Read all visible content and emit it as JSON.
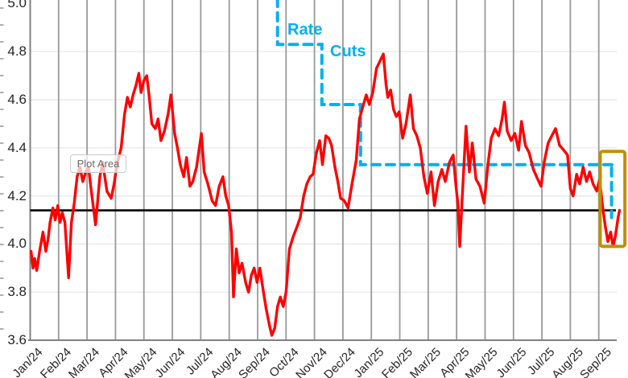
{
  "chart": {
    "plot_area_tooltip": "Plot Area",
    "annotations": {
      "rate_label": "Rate",
      "cuts_label": "Cuts"
    },
    "colors": {
      "red_line": "#FF0000",
      "rate_cuts_blue": "#00B0F0",
      "reference_black": "#000000",
      "highlight_gold": "#BF9000",
      "vertical_gridline": "#9A9A9A",
      "horizontal_gridline": "#E3E6EA",
      "axis_line": "#808080",
      "axis_text": "#262626"
    }
  },
  "chart_data": {
    "type": "line",
    "title": "",
    "grid": {
      "vertical": true,
      "horizontal": true
    },
    "legend": "none",
    "x_unit": "months since Jan 2024 (0 = Jan/24 gridline, 1 tick per month)",
    "x_tick_labels": [
      "Jan/24",
      "Feb/24",
      "Mar/24",
      "Apr/24",
      "May/24",
      "Jun/24",
      "Jul/24",
      "Aug/24",
      "Sep/24",
      "Oct/24",
      "Nov/24",
      "Dec/24",
      "Jan/25",
      "Feb/25",
      "Mar/25",
      "Apr/25",
      "May/25",
      "Jun/25",
      "Jul/25",
      "Aug/25",
      "Sep/25"
    ],
    "y_ticks": [
      3.6,
      3.8,
      4.0,
      4.2,
      4.4,
      4.6,
      4.8,
      5.0
    ],
    "ylim": [
      3.6,
      5.0
    ],
    "red_series": {
      "name": "red-yield-line",
      "color": "#FF0000",
      "points": [
        [
          0.03,
          3.97
        ],
        [
          0.1,
          3.9
        ],
        [
          0.16,
          3.94
        ],
        [
          0.23,
          3.89
        ],
        [
          0.33,
          3.97
        ],
        [
          0.45,
          4.05
        ],
        [
          0.55,
          3.97
        ],
        [
          0.63,
          4.02
        ],
        [
          0.7,
          4.09
        ],
        [
          0.8,
          4.15
        ],
        [
          0.88,
          4.1
        ],
        [
          0.97,
          4.16
        ],
        [
          1.05,
          4.09
        ],
        [
          1.13,
          4.13
        ],
        [
          1.22,
          4.09
        ],
        [
          1.35,
          3.86
        ],
        [
          1.45,
          4.09
        ],
        [
          1.55,
          4.17
        ],
        [
          1.65,
          4.28
        ],
        [
          1.75,
          4.32
        ],
        [
          1.85,
          4.26
        ],
        [
          1.95,
          4.3
        ],
        [
          2.05,
          4.32
        ],
        [
          2.15,
          4.22
        ],
        [
          2.3,
          4.08
        ],
        [
          2.45,
          4.28
        ],
        [
          2.55,
          4.34
        ],
        [
          2.7,
          4.22
        ],
        [
          2.85,
          4.19
        ],
        [
          2.95,
          4.25
        ],
        [
          3.05,
          4.33
        ],
        [
          3.2,
          4.4
        ],
        [
          3.32,
          4.54
        ],
        [
          3.42,
          4.61
        ],
        [
          3.52,
          4.57
        ],
        [
          3.62,
          4.62
        ],
        [
          3.72,
          4.66
        ],
        [
          3.82,
          4.71
        ],
        [
          3.9,
          4.63
        ],
        [
          4.0,
          4.68
        ],
        [
          4.1,
          4.7
        ],
        [
          4.18,
          4.62
        ],
        [
          4.28,
          4.5
        ],
        [
          4.4,
          4.48
        ],
        [
          4.5,
          4.52
        ],
        [
          4.6,
          4.43
        ],
        [
          4.72,
          4.47
        ],
        [
          4.85,
          4.54
        ],
        [
          4.95,
          4.62
        ],
        [
          5.08,
          4.46
        ],
        [
          5.18,
          4.4
        ],
        [
          5.28,
          4.33
        ],
        [
          5.4,
          4.28
        ],
        [
          5.5,
          4.36
        ],
        [
          5.62,
          4.24
        ],
        [
          5.72,
          4.26
        ],
        [
          5.85,
          4.32
        ],
        [
          5.95,
          4.4
        ],
        [
          6.02,
          4.46
        ],
        [
          6.12,
          4.3
        ],
        [
          6.25,
          4.25
        ],
        [
          6.4,
          4.18
        ],
        [
          6.52,
          4.16
        ],
        [
          6.65,
          4.24
        ],
        [
          6.78,
          4.28
        ],
        [
          6.88,
          4.2
        ],
        [
          6.98,
          4.16
        ],
        [
          7.08,
          4.05
        ],
        [
          7.15,
          3.78
        ],
        [
          7.25,
          3.98
        ],
        [
          7.35,
          3.88
        ],
        [
          7.45,
          3.92
        ],
        [
          7.58,
          3.84
        ],
        [
          7.68,
          3.8
        ],
        [
          7.78,
          3.87
        ],
        [
          7.88,
          3.9
        ],
        [
          7.98,
          3.84
        ],
        [
          8.08,
          3.9
        ],
        [
          8.18,
          3.82
        ],
        [
          8.3,
          3.73
        ],
        [
          8.42,
          3.66
        ],
        [
          8.5,
          3.62
        ],
        [
          8.6,
          3.65
        ],
        [
          8.7,
          3.74
        ],
        [
          8.8,
          3.78
        ],
        [
          8.9,
          3.74
        ],
        [
          9.0,
          3.8
        ],
        [
          9.12,
          3.98
        ],
        [
          9.25,
          4.03
        ],
        [
          9.38,
          4.07
        ],
        [
          9.5,
          4.11
        ],
        [
          9.62,
          4.2
        ],
        [
          9.73,
          4.25
        ],
        [
          9.85,
          4.28
        ],
        [
          9.95,
          4.29
        ],
        [
          10.07,
          4.38
        ],
        [
          10.18,
          4.43
        ],
        [
          10.28,
          4.33
        ],
        [
          10.4,
          4.45
        ],
        [
          10.5,
          4.44
        ],
        [
          10.6,
          4.41
        ],
        [
          10.72,
          4.32
        ],
        [
          10.82,
          4.26
        ],
        [
          10.92,
          4.19
        ],
        [
          11.05,
          4.18
        ],
        [
          11.18,
          4.15
        ],
        [
          11.32,
          4.25
        ],
        [
          11.47,
          4.35
        ],
        [
          11.58,
          4.52
        ],
        [
          11.7,
          4.57
        ],
        [
          11.82,
          4.62
        ],
        [
          11.93,
          4.58
        ],
        [
          12.05,
          4.63
        ],
        [
          12.18,
          4.73
        ],
        [
          12.3,
          4.76
        ],
        [
          12.42,
          4.79
        ],
        [
          12.52,
          4.66
        ],
        [
          12.58,
          4.61
        ],
        [
          12.68,
          4.64
        ],
        [
          12.78,
          4.56
        ],
        [
          12.88,
          4.53
        ],
        [
          12.98,
          4.55
        ],
        [
          13.1,
          4.44
        ],
        [
          13.22,
          4.5
        ],
        [
          13.37,
          4.62
        ],
        [
          13.48,
          4.48
        ],
        [
          13.6,
          4.45
        ],
        [
          13.72,
          4.4
        ],
        [
          13.85,
          4.28
        ],
        [
          13.97,
          4.21
        ],
        [
          14.1,
          4.3
        ],
        [
          14.22,
          4.16
        ],
        [
          14.35,
          4.26
        ],
        [
          14.48,
          4.31
        ],
        [
          14.6,
          4.26
        ],
        [
          14.75,
          4.34
        ],
        [
          14.88,
          4.37
        ],
        [
          14.97,
          4.25
        ],
        [
          15.05,
          4.16
        ],
        [
          15.11,
          3.99
        ],
        [
          15.2,
          4.2
        ],
        [
          15.33,
          4.49
        ],
        [
          15.45,
          4.3
        ],
        [
          15.55,
          4.42
        ],
        [
          15.68,
          4.27
        ],
        [
          15.82,
          4.24
        ],
        [
          15.97,
          4.17
        ],
        [
          16.1,
          4.33
        ],
        [
          16.22,
          4.44
        ],
        [
          16.35,
          4.48
        ],
        [
          16.48,
          4.45
        ],
        [
          16.6,
          4.52
        ],
        [
          16.68,
          4.59
        ],
        [
          16.78,
          4.47
        ],
        [
          16.92,
          4.43
        ],
        [
          17.05,
          4.46
        ],
        [
          17.18,
          4.39
        ],
        [
          17.28,
          4.51
        ],
        [
          17.42,
          4.41
        ],
        [
          17.55,
          4.38
        ],
        [
          17.7,
          4.31
        ],
        [
          17.85,
          4.27
        ],
        [
          17.97,
          4.24
        ],
        [
          18.08,
          4.34
        ],
        [
          18.22,
          4.42
        ],
        [
          18.35,
          4.45
        ],
        [
          18.48,
          4.48
        ],
        [
          18.62,
          4.41
        ],
        [
          18.77,
          4.39
        ],
        [
          18.9,
          4.37
        ],
        [
          19.0,
          4.23
        ],
        [
          19.1,
          4.2
        ],
        [
          19.22,
          4.29
        ],
        [
          19.33,
          4.25
        ],
        [
          19.45,
          4.32
        ],
        [
          19.57,
          4.26
        ],
        [
          19.68,
          4.3
        ],
        [
          19.8,
          4.25
        ],
        [
          19.93,
          4.22
        ],
        [
          20.03,
          4.27
        ],
        [
          20.13,
          4.16
        ],
        [
          20.22,
          4.08
        ],
        [
          20.32,
          4.01
        ],
        [
          20.42,
          4.05
        ],
        [
          20.5,
          3.99
        ],
        [
          20.58,
          4.03
        ],
        [
          20.68,
          4.11
        ],
        [
          20.73,
          4.14
        ]
      ]
    },
    "rate_cuts_step_series": {
      "name": "rate-cuts-dashed-step-line",
      "color": "#00B0F0",
      "style": "dashed step, enters from top edge of image",
      "steps": [
        {
          "drop_at_m": 8.7,
          "to_level": 4.83
        },
        {
          "drop_at_m": 10.26,
          "to_level": 4.58
        },
        {
          "drop_at_m": 11.62,
          "to_level": 4.33
        },
        {
          "drop_at_m": 20.45,
          "to_level": 4.11
        }
      ]
    },
    "reference_line": {
      "name": "black-horizontal-reference-line",
      "value": 4.14,
      "color": "#000000"
    },
    "highlight_box": {
      "m0": 20.05,
      "m1": 20.92,
      "v_top": 4.385,
      "v_bottom": 3.99,
      "color": "#BF9000"
    }
  }
}
